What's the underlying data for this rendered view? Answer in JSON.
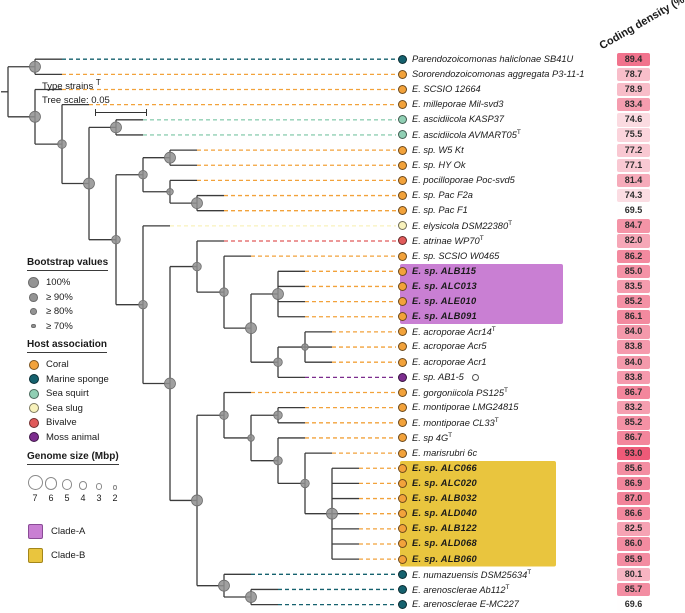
{
  "header": {
    "coding_density": "Coding density (%)"
  },
  "legend": {
    "type_strains": {
      "label": "Type strains ",
      "sup": "T"
    },
    "tree_scale": {
      "label": "Tree scale: 0.05"
    },
    "bootstrap": {
      "title": "Bootstrap values",
      "items": [
        {
          "label": "100%",
          "r": 5.5
        },
        {
          "label": "≥ 90%",
          "r": 4.3
        },
        {
          "label": "≥ 80%",
          "r": 3.3
        },
        {
          "label": "≥ 70%",
          "r": 2.2
        }
      ]
    },
    "host": {
      "title": "Host association",
      "items": [
        {
          "label": "Coral",
          "key": "coral"
        },
        {
          "label": "Marine sponge",
          "key": "sponge"
        },
        {
          "label": "Sea squirt",
          "key": "squirt"
        },
        {
          "label": "Sea slug",
          "key": "slug"
        },
        {
          "label": "Bivalve",
          "key": "bivalve"
        },
        {
          "label": "Moss animal",
          "key": "moss"
        }
      ]
    },
    "genome": {
      "title": "Genome size (Mbp)",
      "sizes": [
        {
          "label": "7",
          "r": 7.5
        },
        {
          "label": "6",
          "r": 6.4
        },
        {
          "label": "5",
          "r": 5.3
        },
        {
          "label": "4",
          "r": 4.2
        },
        {
          "label": "3",
          "r": 3.1
        },
        {
          "label": "2",
          "r": 2.1
        }
      ]
    },
    "clades": [
      {
        "label": "Clade-A",
        "color": "#c97fd3",
        "border": "#8a4b96"
      },
      {
        "label": "Clade-B",
        "color": "#e9c53e",
        "border": "#a3861b"
      }
    ]
  },
  "chart_data": {
    "type": "phylogenetic-tree-heatmap",
    "value_column_label": "Coding density (%)",
    "tree_scale": 0.05,
    "value_range": [
      69.4,
      93.0
    ],
    "colors": {
      "branch": "#3c3c3c",
      "bootstrap_fill": "#8f8f8f",
      "bootstrap_stroke": "#6d6d6d",
      "heat_base": [
        238,
        90,
        120
      ]
    },
    "host_colors": {
      "coral": "#f2a23b",
      "sponge": "#15616e",
      "squirt": "#90cfb4",
      "slug": "#f8f2bc",
      "bivalve": "#e05a5a",
      "moss": "#7c2d8e"
    },
    "clade_colors": {
      "A": "#c97fd3",
      "B": "#e9c53e"
    },
    "leaves": [
      {
        "label": "Parendozoicomonas haliclonae SB41U",
        "host": "sponge",
        "value": 89.4
      },
      {
        "label": "Sororendozoicomonas aggregata P3-11-1",
        "host": "coral",
        "value": 78.7
      },
      {
        "label": "E. SCSIO 12664",
        "host": "coral",
        "value": 78.9
      },
      {
        "label": "E. milleporae Mil-svd3",
        "host": "coral",
        "value": 83.4
      },
      {
        "label": "E. ascidiicola KASP37",
        "host": "squirt",
        "value": 74.6
      },
      {
        "label": "E. ascidiicola AVMART05",
        "sup": "T",
        "host": "squirt",
        "value": 75.5
      },
      {
        "label": "E. sp. W5 Kt",
        "host": "coral",
        "value": 77.2
      },
      {
        "label": "E. sp. HY Ok",
        "host": "coral",
        "value": 77.1
      },
      {
        "label": "E. pocilloporae Poc-svd5",
        "host": "coral",
        "value": 81.4
      },
      {
        "label": "E. sp. Pac F2a",
        "host": "coral",
        "value": 74.3
      },
      {
        "label": "E. sp. Pac F1",
        "host": "coral",
        "value": 69.5
      },
      {
        "label": "E. elysicola DSM22380",
        "sup": "T",
        "host": "slug",
        "value": 84.7
      },
      {
        "label": "E. atrinae WP70",
        "sup": "T",
        "host": "bivalve",
        "value": 82.0
      },
      {
        "label": "E. sp. SCSIO W0465",
        "host": "coral",
        "value": 86.2
      },
      {
        "label": "E. sp. ALB115",
        "host": "coral",
        "value": 85.0,
        "clade": "A"
      },
      {
        "label": "E. sp. ALC013",
        "host": "coral",
        "value": 83.5,
        "clade": "A"
      },
      {
        "label": "E. sp. ALE010",
        "host": "coral",
        "value": 85.2,
        "clade": "A"
      },
      {
        "label": "E. sp. ALB091",
        "host": "coral",
        "value": 86.1,
        "clade": "A"
      },
      {
        "label": "E. acroporae Acr14",
        "sup": "T",
        "host": "coral",
        "value": 84.0
      },
      {
        "label": "E. acroporae Acr5",
        "host": "coral",
        "value": 83.8
      },
      {
        "label": "E. acroporae Acr1",
        "host": "coral",
        "value": 84.0
      },
      {
        "label": "E. sp. AB1-5",
        "host": "moss",
        "value": 83.8,
        "genome_circle": true
      },
      {
        "label": "E. gorgoniicola PS125",
        "sup": "T",
        "host": "coral",
        "value": 86.7
      },
      {
        "label": "E. montiporae LMG24815",
        "host": "coral",
        "value": 83.2
      },
      {
        "label": "E. montiporae CL33",
        "sup": "T",
        "host": "coral",
        "value": 85.2
      },
      {
        "label": "E. sp 4G",
        "sup": "T",
        "host": "coral",
        "value": 86.7
      },
      {
        "label": "E. marisrubri 6c",
        "host": "coral",
        "value": 93.0
      },
      {
        "label": "E. sp. ALC066",
        "host": "coral",
        "value": 85.6,
        "clade": "B"
      },
      {
        "label": "E. sp. ALC020",
        "host": "coral",
        "value": 86.9,
        "clade": "B"
      },
      {
        "label": "E. sp. ALB032",
        "host": "coral",
        "value": 87.0,
        "clade": "B"
      },
      {
        "label": "E. sp. ALD040",
        "host": "coral",
        "value": 86.6,
        "clade": "B"
      },
      {
        "label": "E. sp. ALB122",
        "host": "coral",
        "value": 82.5,
        "clade": "B"
      },
      {
        "label": "E. sp. ALD068",
        "host": "coral",
        "value": 86.0,
        "clade": "B"
      },
      {
        "label": "E. sp. ALB060",
        "host": "coral",
        "value": 85.9,
        "clade": "B"
      },
      {
        "label": "E. numazuensis DSM25634",
        "sup": "T",
        "host": "sponge",
        "value": 80.1
      },
      {
        "label": "E. arenosclerae Ab112",
        "sup": "T",
        "host": "sponge",
        "value": 85.7
      },
      {
        "label": "E. arenosclerae E-MC227",
        "host": "sponge",
        "value": 69.6
      }
    ],
    "topology": {
      "children": [
        {
          "r": 5.5,
          "children": [
            {
              "leaf": 0
            },
            {
              "leaf": 1
            }
          ]
        },
        {
          "r": 5.5,
          "children": [
            {
              "leaf": 2
            },
            {
              "r": 4.3,
              "children": [
                {
                  "leaf": 3
                },
                {
                  "r": 5.5,
                  "children": [
                    {
                      "r": 5.5,
                      "children": [
                        {
                          "leaf": 4
                        },
                        {
                          "leaf": 5
                        }
                      ]
                    },
                    {
                      "r": 4.3,
                      "children": [
                        {
                          "r": 4.3,
                          "children": [
                            {
                              "r": 5.5,
                              "children": [
                                {
                                  "leaf": 6
                                },
                                {
                                  "leaf": 7
                                }
                              ]
                            },
                            {
                              "r": 3.3,
                              "children": [
                                {
                                  "leaf": 8
                                },
                                {
                                  "r": 5.5,
                                  "children": [
                                    {
                                      "leaf": 9
                                    },
                                    {
                                      "leaf": 10
                                    }
                                  ]
                                }
                              ]
                            }
                          ]
                        },
                        {
                          "r": 4.3,
                          "children": [
                            {
                              "leaf": 11
                            },
                            {
                              "r": 5.5,
                              "children": [
                                {
                                  "r": 4.3,
                                  "children": [
                                    {
                                      "leaf": 12
                                    },
                                    {
                                      "r": 4.3,
                                      "children": [
                                        {
                                          "leaf": 13
                                        },
                                        {
                                          "r": 5.5,
                                          "children": [
                                            {
                                              "r": 5.5,
                                              "children": [
                                                {
                                                  "leaf": 14
                                                },
                                                {
                                                  "leaf": 15
                                                },
                                                {
                                                  "leaf": 16
                                                },
                                                {
                                                  "leaf": 17
                                                }
                                              ]
                                            },
                                            {
                                              "r": 4.3,
                                              "children": [
                                                {
                                                  "r": 3.3,
                                                  "children": [
                                                    {
                                                      "leaf": 18
                                                    },
                                                    {
                                                      "leaf": 19
                                                    },
                                                    {
                                                      "leaf": 20
                                                    }
                                                  ]
                                                },
                                                {
                                                  "leaf": 21
                                                }
                                              ]
                                            }
                                          ]
                                        }
                                      ]
                                    }
                                  ]
                                },
                                {
                                  "r": 5.5,
                                  "children": [
                                    {
                                      "r": 4.3,
                                      "children": [
                                        {
                                          "leaf": 22
                                        },
                                        {
                                          "r": 3.3,
                                          "children": [
                                            {
                                              "r": 4.3,
                                              "children": [
                                                {
                                                  "leaf": 23
                                                },
                                                {
                                                  "leaf": 24
                                                }
                                              ]
                                            },
                                            {
                                              "r": 4.3,
                                              "children": [
                                                {
                                                  "leaf": 25
                                                },
                                                {
                                                  "r": 4.3,
                                                  "children": [
                                                    {
                                                      "leaf": 26
                                                    },
                                                    {
                                                      "r": 5.5,
                                                      "children": [
                                                        {
                                                          "leaf": 27
                                                        },
                                                        {
                                                          "leaf": 28
                                                        },
                                                        {
                                                          "leaf": 29
                                                        },
                                                        {
                                                          "leaf": 30
                                                        },
                                                        {
                                                          "leaf": 31
                                                        },
                                                        {
                                                          "leaf": 32
                                                        },
                                                        {
                                                          "leaf": 33
                                                        }
                                                      ]
                                                    }
                                                  ]
                                                }
                                              ]
                                            }
                                          ]
                                        }
                                      ]
                                    },
                                    {
                                      "r": 5.5,
                                      "children": [
                                        {
                                          "leaf": 34
                                        },
                                        {
                                          "r": 5.5,
                                          "children": [
                                            {
                                              "leaf": 35
                                            },
                                            {
                                              "leaf": 36
                                            }
                                          ]
                                        }
                                      ]
                                    }
                                  ]
                                }
                              ]
                            }
                          ]
                        }
                      ]
                    }
                  ]
                }
              ]
            }
          ]
        }
      ]
    }
  }
}
